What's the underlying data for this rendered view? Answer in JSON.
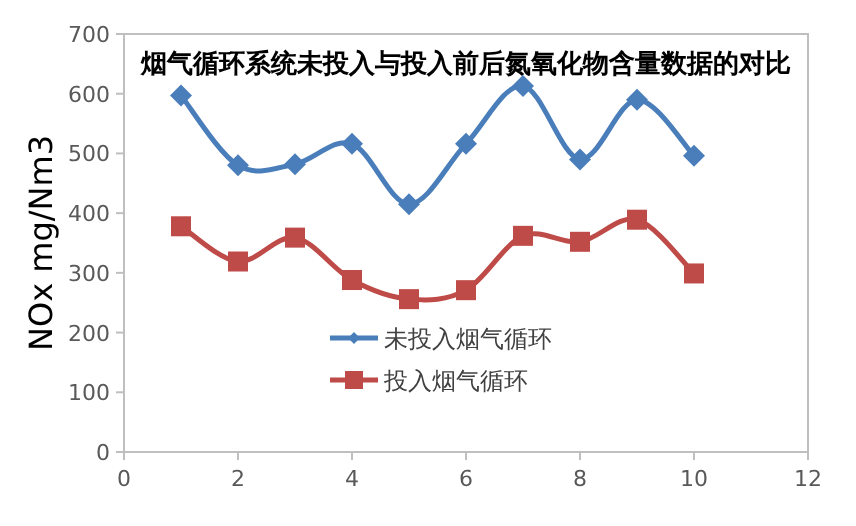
{
  "chart_data": {
    "type": "line",
    "title": "烟气循环系统未投入与投入前后氮氧化物含量数据的对比",
    "ylabel": "NOx mg/Nm3",
    "x": [
      1,
      2,
      3,
      4,
      5,
      6,
      7,
      8,
      9,
      10
    ],
    "series": [
      {
        "name": "未投入烟气循环",
        "color": "#4a7ebb",
        "marker": "diamond",
        "values": [
          597,
          480,
          482,
          516,
          415,
          516,
          613,
          490,
          590,
          496
        ]
      },
      {
        "name": "投入烟气循环",
        "color": "#be4b48",
        "marker": "square",
        "values": [
          378,
          319,
          359,
          288,
          256,
          271,
          362,
          352,
          389,
          299
        ]
      }
    ],
    "xlim": [
      0,
      12
    ],
    "xticks": [
      0,
      2,
      4,
      6,
      8,
      10,
      12
    ],
    "ylim": [
      0,
      700
    ],
    "yticks": [
      0,
      100,
      200,
      300,
      400,
      500,
      600,
      700
    ],
    "grid": false,
    "legend": "center",
    "line_style": "solid"
  }
}
